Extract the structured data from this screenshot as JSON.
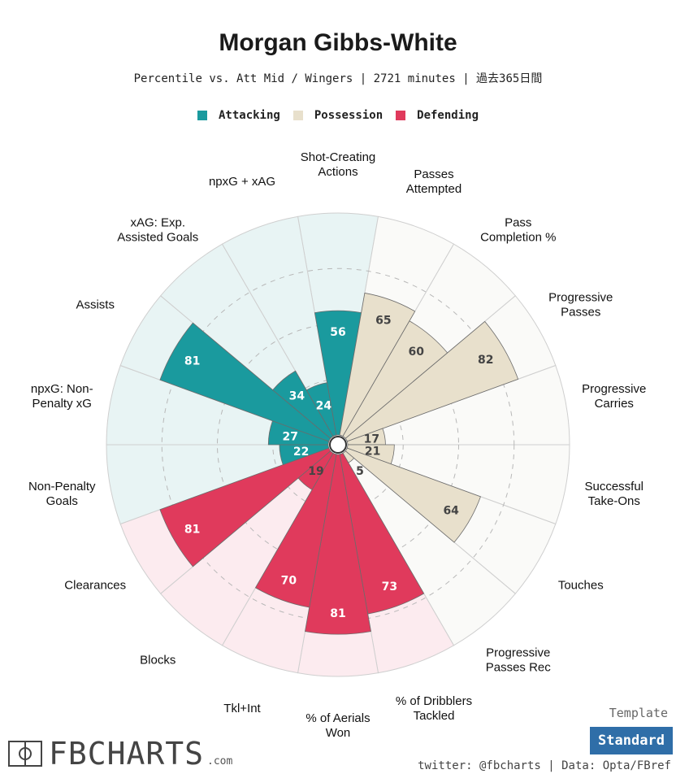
{
  "header": {
    "title": "Morgan Gibbs-White",
    "subtitle": "Percentile vs. Att Mid / Wingers | 2721 minutes | 過去365日間"
  },
  "legend": [
    {
      "label": "Attacking",
      "color": "#1a9a9e"
    },
    {
      "label": "Possession",
      "color": "#e8e0cc"
    },
    {
      "label": "Defending",
      "color": "#e03a5c"
    }
  ],
  "chart_data": {
    "type": "radial-bar",
    "scale": [
      0,
      100
    ],
    "grid": true,
    "legend_position": "top",
    "groups": {
      "Attacking": {
        "bar": "#1a9a9e",
        "bg": "#e8f4f4"
      },
      "Possession": {
        "bar": "#e8e0cc",
        "bg": "#fafaf8"
      },
      "Defending": {
        "bar": "#e03a5c",
        "bg": "#fcebef"
      }
    },
    "metrics": [
      {
        "label": "Shot-Creating\nActions",
        "value": 56,
        "group": "Attacking"
      },
      {
        "label": "Passes\nAttempted",
        "value": 65,
        "group": "Possession"
      },
      {
        "label": "Pass\nCompletion %",
        "value": 60,
        "group": "Possession"
      },
      {
        "label": "Progressive\nPasses",
        "value": 82,
        "group": "Possession"
      },
      {
        "label": "Progressive\nCarries",
        "value": 17,
        "group": "Possession"
      },
      {
        "label": "Successful\nTake-Ons",
        "value": 21,
        "group": "Possession"
      },
      {
        "label": "Touches",
        "value": 64,
        "group": "Possession"
      },
      {
        "label": "Progressive\nPasses Rec",
        "value": 5,
        "group": "Possession"
      },
      {
        "label": "% of Dribblers\nTackled",
        "value": 73,
        "group": "Defending"
      },
      {
        "label": "% of Aerials\nWon",
        "value": 81,
        "group": "Defending"
      },
      {
        "label": "Tkl+Int",
        "value": 70,
        "group": "Defending"
      },
      {
        "label": "Blocks",
        "value": 19,
        "group": "Defending"
      },
      {
        "label": "Clearances",
        "value": 81,
        "group": "Defending"
      },
      {
        "label": "Non-Penalty\nGoals",
        "value": 22,
        "group": "Attacking"
      },
      {
        "label": "npxG: Non-\nPenalty xG",
        "value": 27,
        "group": "Attacking"
      },
      {
        "label": "Assists",
        "value": 81,
        "group": "Attacking"
      },
      {
        "label": "xAG: Exp.\nAssisted Goals",
        "value": 34,
        "group": "Attacking"
      },
      {
        "label": "npxG + xAG",
        "value": 24,
        "group": "Attacking"
      }
    ]
  },
  "footer": {
    "brand": "FBCHARTS",
    "brand_suffix": ".com",
    "template_label": "Template",
    "template_button": "Standard",
    "credit": "twitter: @fbcharts | Data: Opta/FBref"
  }
}
